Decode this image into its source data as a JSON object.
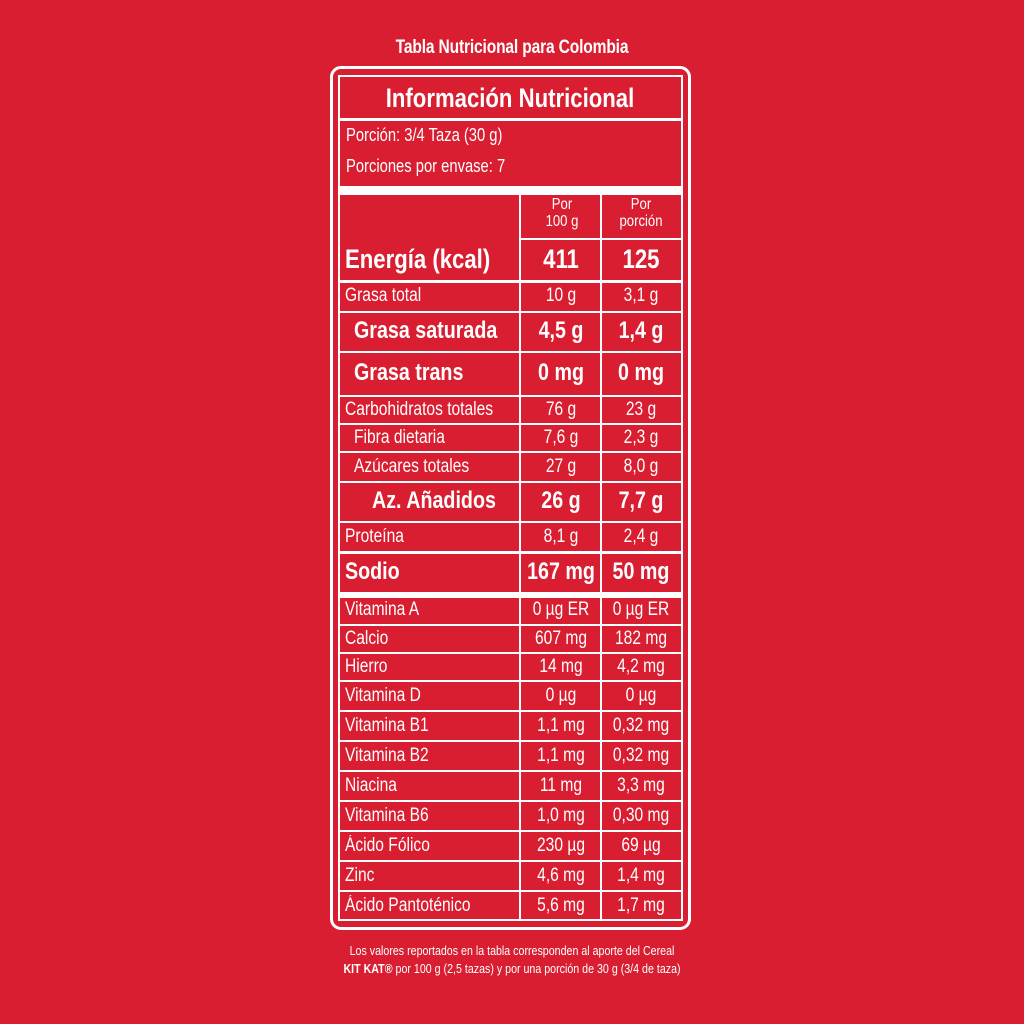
{
  "top_title": "Tabla Nutricional para Colombia",
  "header": {
    "title": "Información Nutricional",
    "portion": "Porción: 3/4 Taza (30 g)",
    "servings": "Porciones por envase: 7"
  },
  "columns": {
    "per100_line1": "Por",
    "per100_line2": "100 g",
    "perportion_line1": "Por",
    "perportion_line2": "porción"
  },
  "rows": [
    {
      "label": "Energía (kcal)",
      "v100": "411",
      "vpor": "125",
      "style": "big",
      "indent": 0
    },
    {
      "label": "Grasa total",
      "v100": "10 g",
      "vpor": "3,1 g",
      "style": "norm",
      "indent": 0
    },
    {
      "label": "Grasa saturada",
      "v100": "4,5 g",
      "vpor": "1,4 g",
      "style": "semi",
      "indent": 1
    },
    {
      "label": "Grasa trans",
      "v100": "0 mg",
      "vpor": "0 mg",
      "style": "semi",
      "indent": 1
    },
    {
      "label": "Carbohidratos totales",
      "v100": "76 g",
      "vpor": "23 g",
      "style": "norm",
      "indent": 0
    },
    {
      "label": "Fibra dietaria",
      "v100": "7,6 g",
      "vpor": "2,3 g",
      "style": "norm",
      "indent": 1
    },
    {
      "label": "Azúcares totales",
      "v100": "27 g",
      "vpor": "8,0 g",
      "style": "norm",
      "indent": 1
    },
    {
      "label": "Az. Añadidos",
      "v100": "26 g",
      "vpor": "7,7 g",
      "style": "semi",
      "indent": 2
    },
    {
      "label": "Proteína",
      "v100": "8,1 g",
      "vpor": "2,4 g",
      "style": "norm",
      "indent": 0
    },
    {
      "label": "Sodio",
      "v100": "167 mg",
      "vpor": "50 mg",
      "style": "semi",
      "indent": 0
    },
    {
      "label": "Vitamina A",
      "v100": "0 µg ER",
      "vpor": "0 µg ER",
      "style": "norm",
      "indent": 0
    },
    {
      "label": "Calcio",
      "v100": "607 mg",
      "vpor": "182 mg",
      "style": "norm",
      "indent": 0
    },
    {
      "label": "Hierro",
      "v100": "14 mg",
      "vpor": "4,2 mg",
      "style": "norm",
      "indent": 0
    },
    {
      "label": "Vitamina D",
      "v100": "0 µg",
      "vpor": "0 µg",
      "style": "norm",
      "indent": 0
    },
    {
      "label": "Vitamina B1",
      "v100": "1,1 mg",
      "vpor": "0,32 mg",
      "style": "norm",
      "indent": 0
    },
    {
      "label": "Vitamina B2",
      "v100": "1,1 mg",
      "vpor": "0,32 mg",
      "style": "norm",
      "indent": 0
    },
    {
      "label": "Niacina",
      "v100": "11 mg",
      "vpor": "3,3 mg",
      "style": "norm",
      "indent": 0
    },
    {
      "label": "Vitamina B6",
      "v100": "1,0 mg",
      "vpor": "0,30 mg",
      "style": "norm",
      "indent": 0
    },
    {
      "label": "Ácido Fólico",
      "v100": "230 µg",
      "vpor": "69 µg",
      "style": "norm",
      "indent": 0
    },
    {
      "label": "Zinc",
      "v100": "4,6 mg",
      "vpor": "1,4 mg",
      "style": "norm",
      "indent": 0
    },
    {
      "label": "Ácido Pantoténico",
      "v100": "5,6 mg",
      "vpor": "1,7 mg",
      "style": "norm",
      "indent": 0
    }
  ],
  "footnote": {
    "line1": "Los valores reportados en la tabla corresponden al aporte del Cereal",
    "brand": "KIT KAT®",
    "line2_rest": " por 100 g (2,5 tazas) y por una porción de 30 g (3/4 de taza)"
  }
}
